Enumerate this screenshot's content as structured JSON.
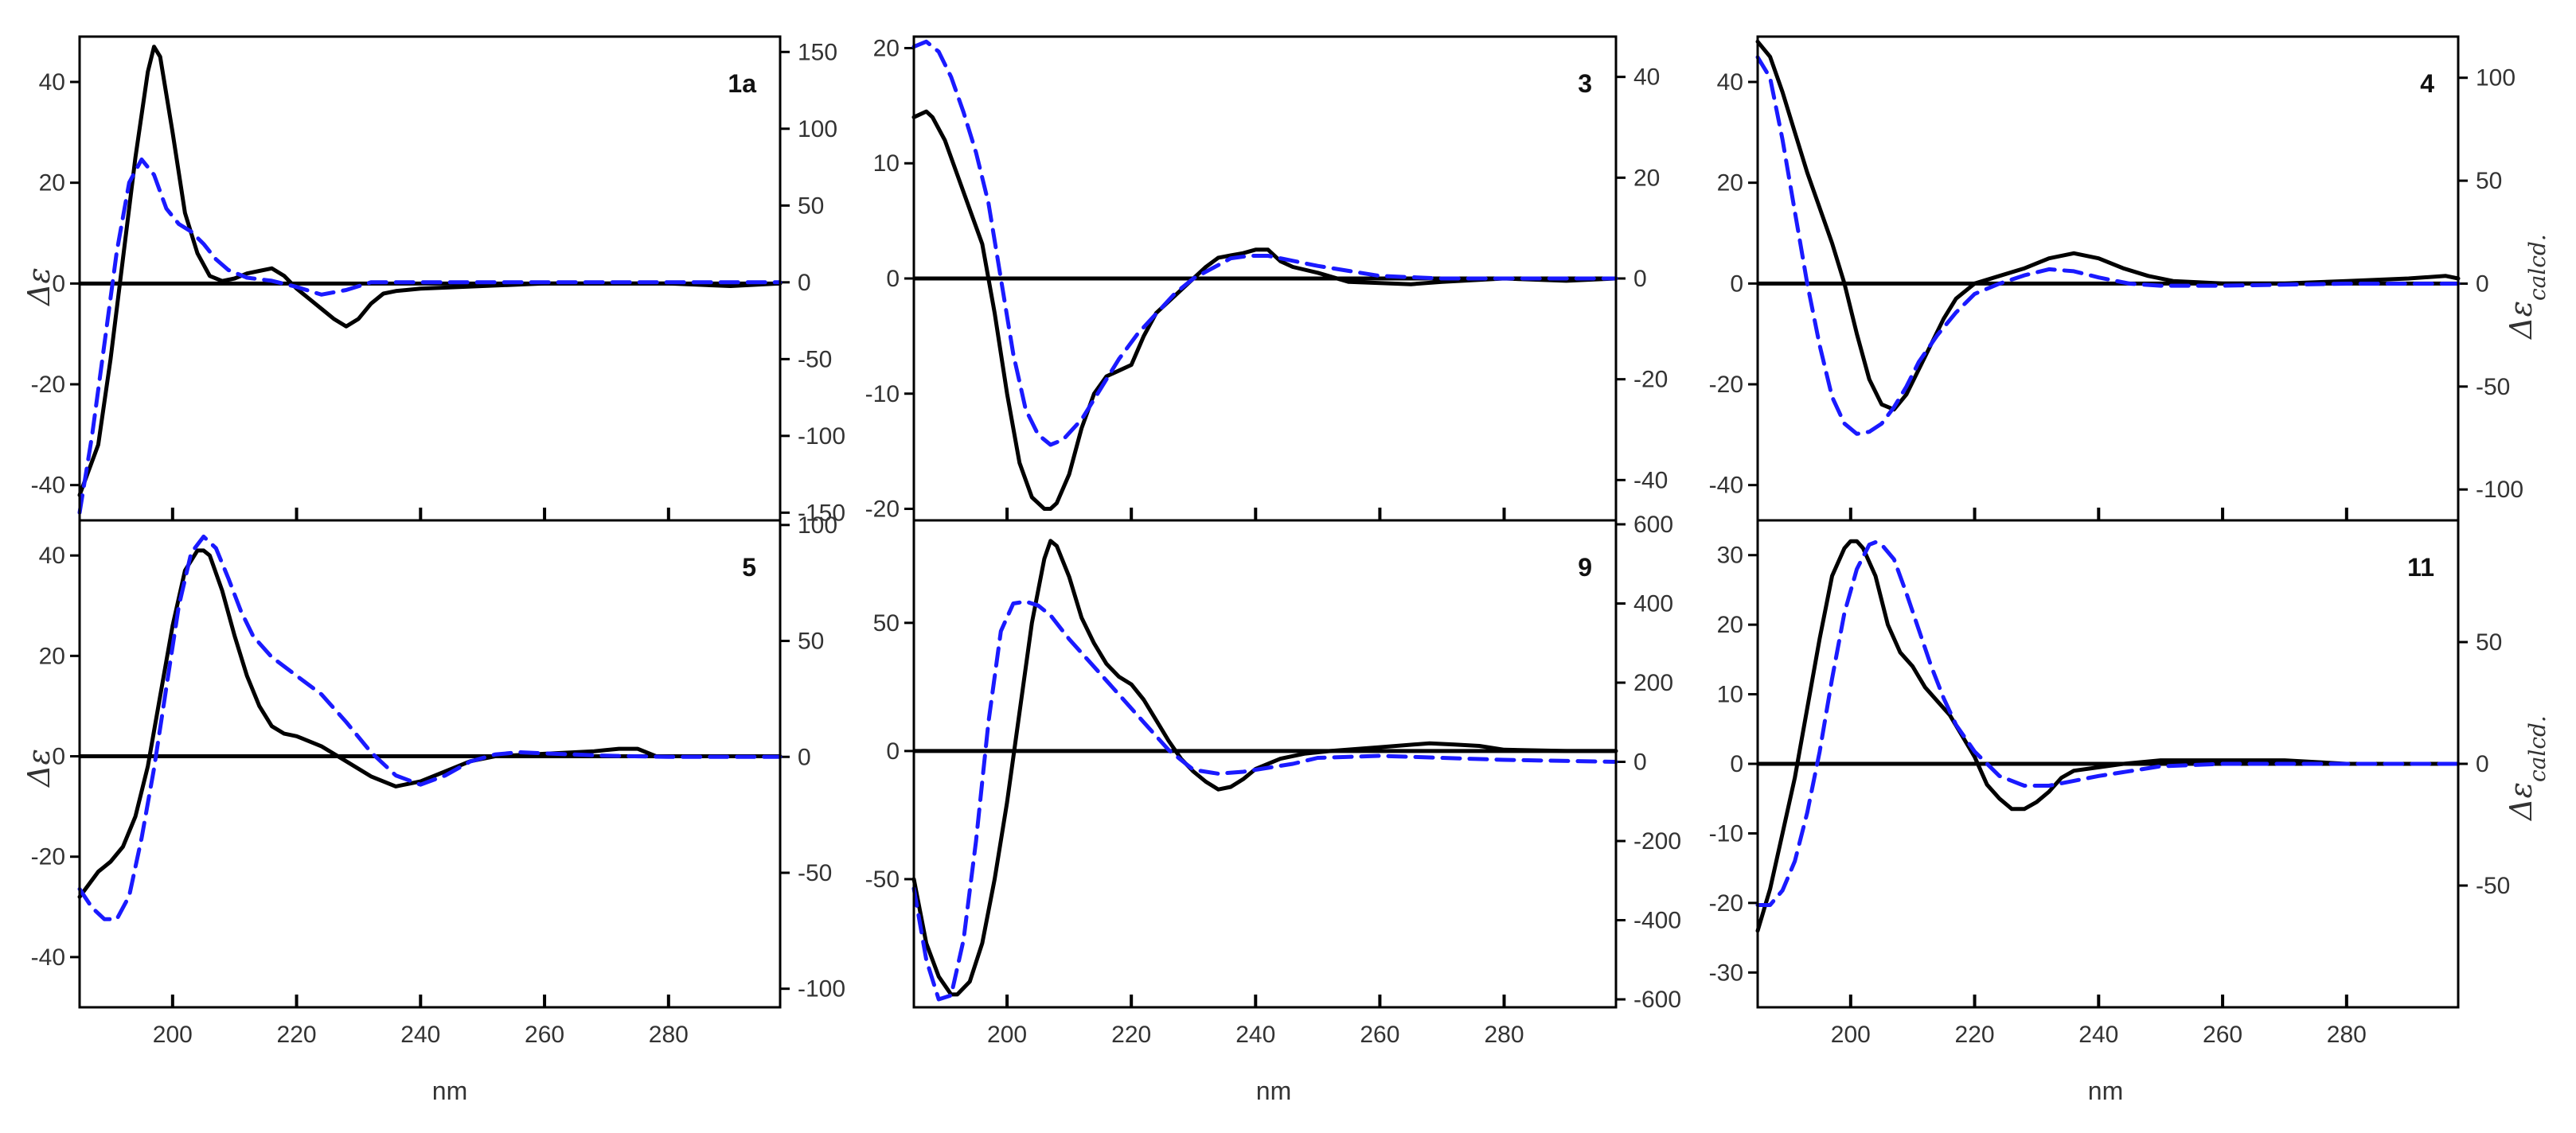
{
  "figure": {
    "y_label_left": "Δε",
    "y_label_right_main": "Δε",
    "y_label_right_sub": "calcd.",
    "x_label": "nm"
  },
  "chart_data": [
    {
      "type": "line",
      "label": "1a",
      "xlim": [
        185,
        298
      ],
      "ylim_left": [
        -47,
        49
      ],
      "ylim_right": [
        -155,
        160
      ],
      "yticks_left": [
        -40,
        -20,
        0,
        20,
        40
      ],
      "yticks_right": [
        -150,
        -100,
        -50,
        0,
        50,
        100,
        150
      ],
      "xticks": [
        200,
        220,
        240,
        260,
        280
      ],
      "series": [
        {
          "axis": "left",
          "color": "#000000",
          "style": "solid",
          "x": [
            185,
            188,
            190,
            192,
            194,
            196,
            197,
            198,
            200,
            202,
            204,
            206,
            208,
            210,
            212,
            214,
            216,
            218,
            220,
            222,
            224,
            226,
            228,
            230,
            232,
            234,
            236,
            240,
            250,
            260,
            280,
            290,
            298
          ],
          "y": [
            -42,
            -32,
            -15,
            5,
            25,
            42,
            47,
            45,
            30,
            14,
            6,
            1.5,
            0.5,
            1,
            2,
            2.5,
            3,
            1.5,
            -1,
            -3,
            -5,
            -7,
            -8.5,
            -7,
            -4,
            -2,
            -1.5,
            -1,
            -0.5,
            0,
            0,
            -0.5,
            0
          ]
        },
        {
          "axis": "right",
          "color": "#1a1aff",
          "style": "dashed",
          "x": [
            185,
            187,
            189,
            191,
            193,
            195,
            197,
            199,
            201,
            203,
            205,
            207,
            209,
            212,
            216,
            220,
            224,
            228,
            232,
            236,
            240,
            250,
            260,
            280,
            298
          ],
          "y": [
            -150,
            -100,
            -40,
            20,
            65,
            80,
            70,
            48,
            38,
            33,
            25,
            15,
            8,
            3,
            1,
            -3,
            -8,
            -5,
            0,
            0,
            0,
            0,
            0,
            0,
            0
          ]
        }
      ]
    },
    {
      "type": "line",
      "label": "3",
      "xlim": [
        185,
        298
      ],
      "ylim_left": [
        -21,
        21
      ],
      "ylim_right": [
        -48,
        48
      ],
      "yticks_left": [
        -20,
        -10,
        0,
        10,
        20
      ],
      "yticks_right": [
        -40,
        -20,
        0,
        20,
        40
      ],
      "xticks": [
        200,
        220,
        240,
        260,
        280
      ],
      "series": [
        {
          "axis": "left",
          "color": "#000000",
          "style": "solid",
          "x": [
            185,
            187,
            188,
            190,
            192,
            194,
            196,
            198,
            200,
            202,
            204,
            206,
            207,
            208,
            210,
            212,
            214,
            216,
            218,
            220,
            222,
            224,
            226,
            228,
            230,
            232,
            234,
            236,
            238,
            240,
            242,
            244,
            246,
            250,
            255,
            260,
            265,
            270,
            280,
            290,
            298
          ],
          "y": [
            14,
            14.5,
            14,
            12,
            9,
            6,
            3,
            -3,
            -10,
            -16,
            -19,
            -20,
            -20,
            -19.5,
            -17,
            -13,
            -10,
            -8.5,
            -8,
            -7.5,
            -5,
            -3,
            -2,
            -1,
            0,
            1,
            1.8,
            2,
            2.2,
            2.5,
            2.5,
            1.5,
            1,
            0.5,
            -0.3,
            -0.4,
            -0.5,
            -0.3,
            0,
            -0.2,
            0
          ]
        },
        {
          "axis": "right",
          "color": "#1a1aff",
          "style": "dashed",
          "x": [
            185,
            187,
            189,
            191,
            193,
            195,
            197,
            199,
            201,
            203,
            205,
            207,
            209,
            212,
            215,
            218,
            221,
            224,
            227,
            230,
            233,
            236,
            239,
            242,
            246,
            250,
            255,
            260,
            270,
            280,
            298
          ],
          "y": [
            46,
            47,
            45,
            40,
            33,
            25,
            15,
            0,
            -15,
            -26,
            -31,
            -33,
            -32,
            -28,
            -22,
            -16,
            -11,
            -7,
            -3,
            0,
            2,
            4,
            4.5,
            4.5,
            3.5,
            2.5,
            1.5,
            0.5,
            0,
            0,
            0
          ]
        }
      ]
    },
    {
      "type": "line",
      "label": "4",
      "xlim": [
        185,
        298
      ],
      "ylim_left": [
        -47,
        49
      ],
      "ylim_right": [
        -115,
        120
      ],
      "yticks_left": [
        -40,
        -20,
        0,
        20,
        40
      ],
      "yticks_right": [
        -100,
        -50,
        0,
        50,
        100
      ],
      "xticks": [
        200,
        220,
        240,
        260,
        280
      ],
      "series": [
        {
          "axis": "left",
          "color": "#000000",
          "style": "solid",
          "x": [
            185,
            187,
            189,
            191,
            193,
            195,
            197,
            199,
            201,
            203,
            205,
            207,
            209,
            211,
            213,
            215,
            217,
            220,
            224,
            228,
            232,
            236,
            240,
            244,
            248,
            252,
            260,
            270,
            280,
            290,
            296,
            298
          ],
          "y": [
            48,
            45,
            38,
            30,
            22,
            15,
            8,
            0,
            -10,
            -19,
            -24,
            -25,
            -22,
            -17,
            -12,
            -7,
            -3,
            0,
            1.5,
            3,
            5,
            6,
            5,
            3,
            1.5,
            0.5,
            0,
            0,
            0.5,
            1,
            1.5,
            1
          ]
        },
        {
          "axis": "right",
          "color": "#1a1aff",
          "style": "dashed",
          "x": [
            185,
            187,
            189,
            191,
            193,
            195,
            197,
            199,
            201,
            203,
            205,
            207,
            209,
            211,
            214,
            217,
            220,
            224,
            228,
            232,
            236,
            240,
            245,
            250,
            260,
            280,
            298
          ],
          "y": [
            110,
            100,
            70,
            35,
            0,
            -30,
            -55,
            -68,
            -73,
            -72,
            -68,
            -60,
            -50,
            -38,
            -25,
            -14,
            -5,
            0,
            4,
            7,
            6,
            3,
            0,
            -1,
            -1,
            0,
            0
          ]
        }
      ]
    },
    {
      "type": "line",
      "label": "5",
      "xlim": [
        185,
        298
      ],
      "ylim_left": [
        -50,
        47
      ],
      "ylim_right": [
        -108,
        102
      ],
      "yticks_left": [
        -40,
        -20,
        0,
        20,
        40
      ],
      "yticks_right": [
        -100,
        -50,
        0,
        50,
        100
      ],
      "xticks": [
        200,
        220,
        240,
        260,
        280
      ],
      "series": [
        {
          "axis": "left",
          "color": "#000000",
          "style": "solid",
          "x": [
            185,
            188,
            190,
            192,
            194,
            196,
            198,
            200,
            202,
            204,
            205,
            206,
            208,
            210,
            212,
            214,
            216,
            218,
            220,
            224,
            228,
            232,
            236,
            240,
            244,
            248,
            252,
            260,
            268,
            272,
            275,
            278,
            290,
            298
          ],
          "y": [
            -28,
            -23,
            -21,
            -18,
            -12,
            -2,
            12,
            26,
            37,
            41,
            41,
            40,
            33,
            24,
            16,
            10,
            6,
            4.5,
            4,
            2,
            -1,
            -4,
            -6,
            -5,
            -3,
            -1,
            0,
            0.5,
            1,
            1.5,
            1.5,
            0,
            0,
            0
          ]
        },
        {
          "axis": "right",
          "color": "#1a1aff",
          "style": "dashed",
          "x": [
            185,
            187,
            189,
            191,
            193,
            195,
            197,
            199,
            201,
            203,
            205,
            207,
            209,
            211,
            213,
            216,
            220,
            224,
            228,
            232,
            236,
            240,
            244,
            248,
            252,
            256,
            260,
            270,
            280,
            290,
            298
          ],
          "y": [
            -57,
            -65,
            -70,
            -70,
            -60,
            -35,
            -5,
            30,
            65,
            88,
            95,
            90,
            77,
            63,
            52,
            43,
            35,
            27,
            15,
            2,
            -8,
            -12,
            -8,
            -2,
            1,
            2,
            1.5,
            0.5,
            0,
            0,
            0
          ]
        }
      ]
    },
    {
      "type": "line",
      "label": "9",
      "xlim": [
        185,
        298
      ],
      "ylim_left": [
        -100,
        90
      ],
      "ylim_right": [
        -620,
        610
      ],
      "yticks_left": [
        -50,
        0,
        50
      ],
      "yticks_right": [
        -600,
        -400,
        -200,
        0,
        200,
        400,
        600
      ],
      "xticks": [
        200,
        220,
        240,
        260,
        280
      ],
      "series": [
        {
          "axis": "left",
          "color": "#000000",
          "style": "solid",
          "x": [
            185,
            187,
            189,
            191,
            192,
            194,
            196,
            198,
            200,
            202,
            204,
            206,
            207,
            208,
            210,
            212,
            214,
            216,
            218,
            220,
            222,
            224,
            226,
            228,
            230,
            232,
            234,
            236,
            238,
            240,
            244,
            248,
            252,
            260,
            268,
            272,
            276,
            280,
            290,
            298
          ],
          "y": [
            -50,
            -75,
            -88,
            -95,
            -95,
            -90,
            -75,
            -50,
            -20,
            15,
            50,
            75,
            82,
            80,
            68,
            52,
            42,
            34,
            29,
            26,
            20,
            12,
            4,
            -3,
            -8,
            -12,
            -15,
            -14,
            -11,
            -7,
            -3,
            -1,
            0,
            1.5,
            3,
            2.5,
            2,
            0.5,
            0,
            0
          ]
        },
        {
          "axis": "right",
          "color": "#1a1aff",
          "style": "dashed",
          "x": [
            185,
            187,
            189,
            191,
            193,
            195,
            197,
            199,
            201,
            203,
            205,
            207,
            210,
            214,
            218,
            222,
            226,
            230,
            234,
            238,
            242,
            246,
            250,
            260,
            270,
            280,
            298
          ],
          "y": [
            -320,
            -500,
            -600,
            -590,
            -450,
            -200,
            100,
            330,
            400,
            405,
            395,
            370,
            310,
            240,
            170,
            100,
            30,
            -20,
            -30,
            -25,
            -15,
            -5,
            10,
            15,
            10,
            5,
            0
          ]
        }
      ]
    },
    {
      "type": "line",
      "label": "11",
      "xlim": [
        185,
        298
      ],
      "ylim_left": [
        -35,
        35
      ],
      "ylim_right": [
        -100,
        100
      ],
      "yticks_left": [
        -30,
        -20,
        -10,
        0,
        10,
        20,
        30
      ],
      "yticks_right": [
        -50,
        0,
        50
      ],
      "xticks": [
        200,
        220,
        240,
        260,
        280
      ],
      "series": [
        {
          "axis": "left",
          "color": "#000000",
          "style": "solid",
          "x": [
            185,
            187,
            189,
            191,
            193,
            195,
            197,
            199,
            200,
            201,
            202,
            204,
            206,
            208,
            210,
            212,
            214,
            216,
            218,
            220,
            222,
            224,
            226,
            228,
            230,
            232,
            234,
            236,
            240,
            244,
            250,
            260,
            270,
            280,
            298
          ],
          "y": [
            -24,
            -18,
            -10,
            -2,
            8,
            18,
            27,
            31,
            32,
            32,
            31,
            27,
            20,
            16,
            14,
            11,
            9,
            7,
            4,
            1,
            -3,
            -5,
            -6.5,
            -6.5,
            -5.5,
            -4,
            -2,
            -1,
            -0.5,
            0,
            0.5,
            0.5,
            0.5,
            0,
            0
          ]
        },
        {
          "axis": "right",
          "color": "#1a1aff",
          "style": "dashed",
          "x": [
            185,
            187,
            189,
            191,
            193,
            195,
            197,
            199,
            201,
            203,
            204,
            205,
            207,
            209,
            211,
            213,
            215,
            217,
            220,
            224,
            228,
            232,
            236,
            240,
            245,
            250,
            260,
            280,
            298
          ],
          "y": [
            -58,
            -58,
            -52,
            -40,
            -20,
            5,
            35,
            62,
            80,
            90,
            91,
            90,
            84,
            70,
            55,
            40,
            27,
            16,
            5,
            -5,
            -9,
            -9,
            -7,
            -5,
            -3,
            -1,
            0,
            0,
            0
          ]
        }
      ]
    }
  ]
}
